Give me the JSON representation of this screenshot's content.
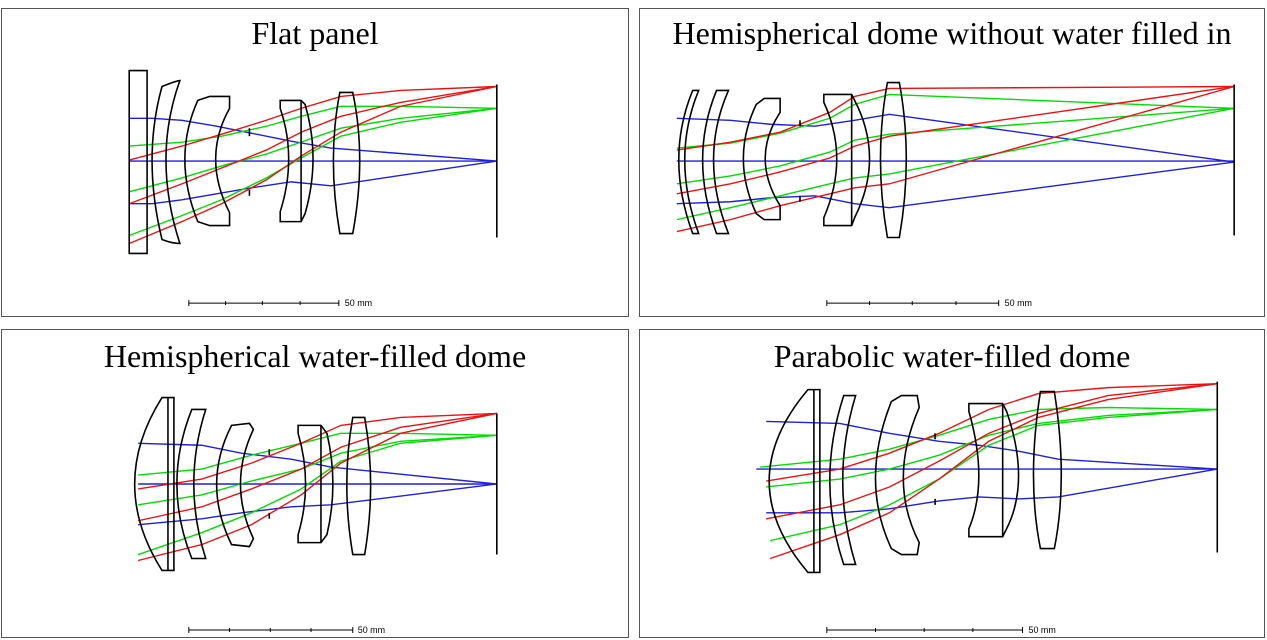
{
  "panels": [
    {
      "title": "Flat panel",
      "scale_label": "50 mm"
    },
    {
      "title": "Hemispherical dome without water filled in",
      "scale_label": "50 mm"
    },
    {
      "title": "Hemispherical water-filled dome",
      "scale_label": "50 mm"
    },
    {
      "title": "Parabolic water-filled dome",
      "scale_label": "50 mm"
    }
  ],
  "colors": {
    "ray_axial": "#1f1fe0",
    "ray_field_mid": "#00dd00",
    "ray_field_edge": "#ee1111",
    "outline": "#000000"
  }
}
